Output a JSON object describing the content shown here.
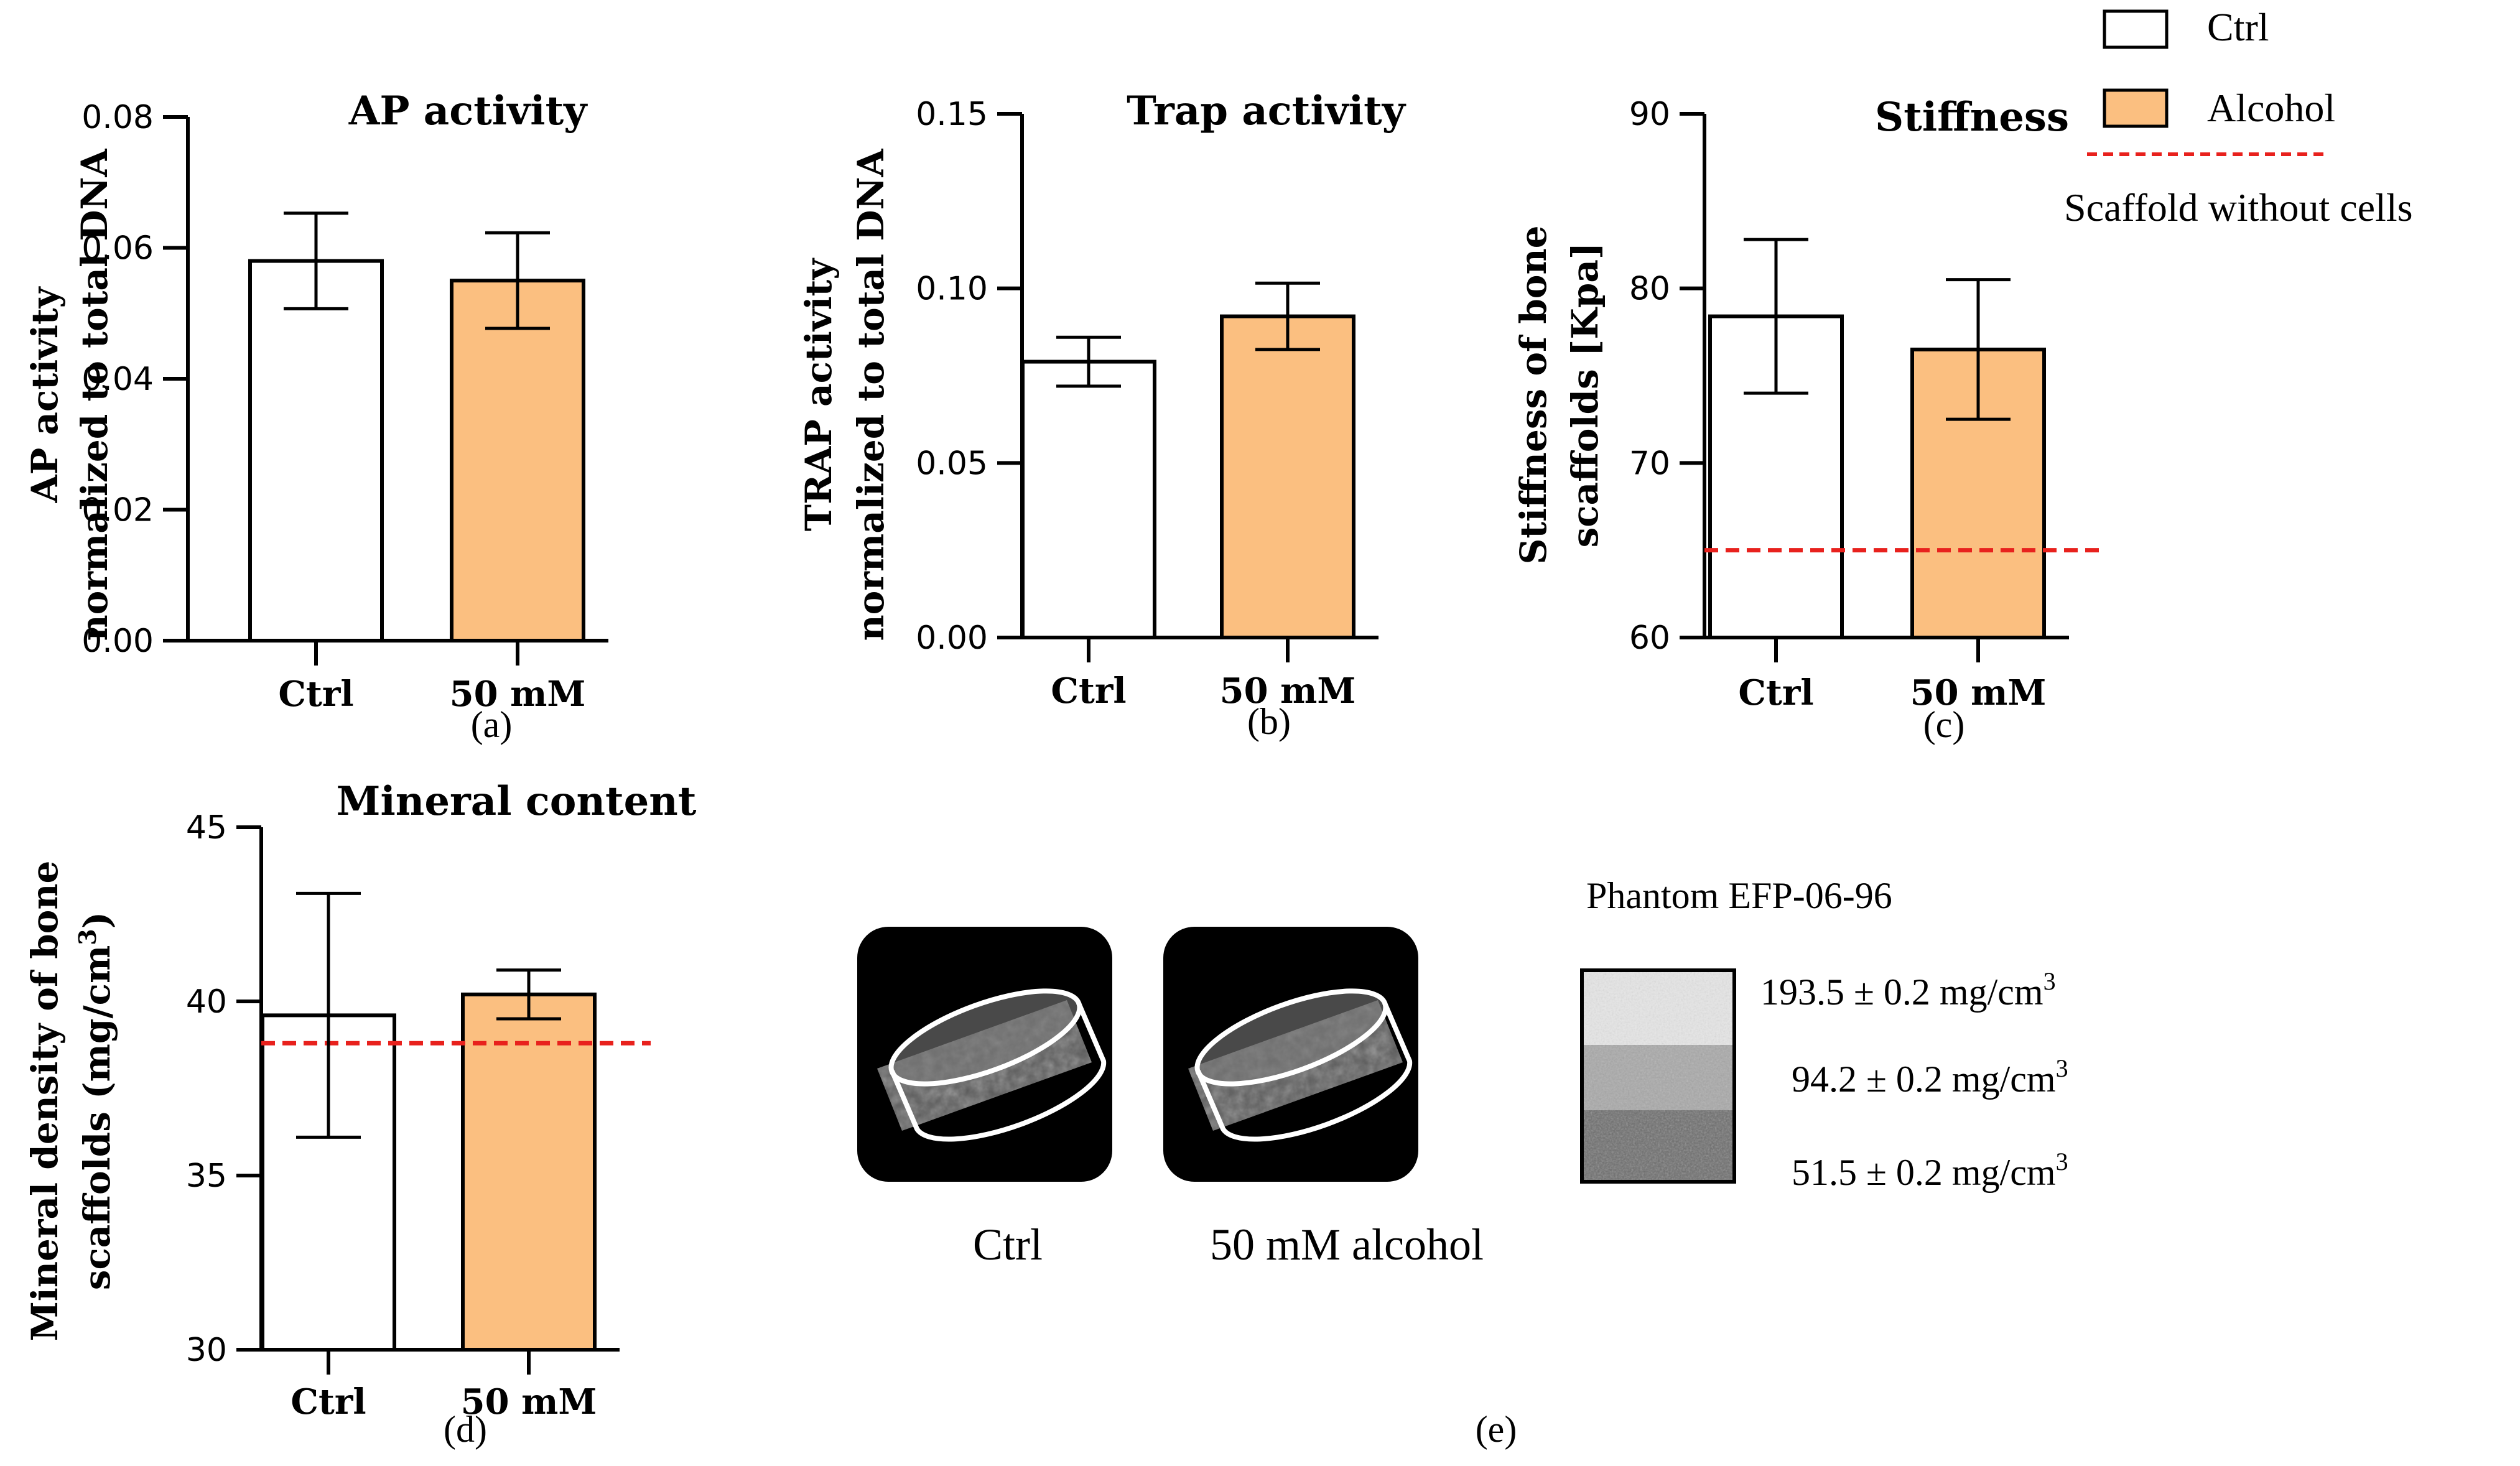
{
  "colors": {
    "ctrl_fill": "#ffffff",
    "alcohol_fill": "#fbbf80",
    "bar_stroke": "#000000",
    "scaffold_line": "#e8211d"
  },
  "legend": {
    "ctrl": "Ctrl",
    "alcohol": "Alcohol",
    "scaffold": "Scaffold without cells"
  },
  "panel_labels": {
    "a": "(a)",
    "b": "(b)",
    "c": "(c)",
    "d": "(d)",
    "e": "(e)"
  },
  "chart_data": [
    {
      "id": "a",
      "type": "bar",
      "title": "AP activity",
      "ylabel_line1": "AP activity",
      "ylabel_line2": "normalized to total DNA",
      "categories": [
        "Ctrl",
        "50 mM"
      ],
      "values": [
        0.058,
        0.055
      ],
      "errors": [
        0.0073,
        0.0073
      ],
      "ylim": [
        0,
        0.08
      ],
      "yticks": [
        "0.00",
        "0.02",
        "0.04",
        "0.06",
        "0.08"
      ]
    },
    {
      "id": "b",
      "type": "bar",
      "title": "Trap activity",
      "ylabel_line1": "TRAP activity",
      "ylabel_line2": "normalized to total DNA",
      "categories": [
        "Ctrl",
        "50 mM"
      ],
      "values": [
        0.079,
        0.092
      ],
      "errors": [
        0.007,
        0.0095
      ],
      "ylim": [
        0,
        0.15
      ],
      "yticks": [
        "0.00",
        "0.05",
        "0.10",
        "0.15"
      ]
    },
    {
      "id": "c",
      "type": "bar",
      "title": "Stiffness",
      "ylabel_line1": "Stiffness of bone",
      "ylabel_line2": "scaffolds [Kpa]",
      "categories": [
        "Ctrl",
        "50 mM"
      ],
      "values": [
        78.4,
        76.5
      ],
      "errors": [
        4.4,
        4.0
      ],
      "ylim": [
        60,
        90
      ],
      "yticks": [
        "60",
        "70",
        "80",
        "90"
      ],
      "reference_line": 65
    },
    {
      "id": "d",
      "type": "bar",
      "title": "Mineral content",
      "ylabel_line1": "Mineral density of bone",
      "ylabel_line2": "scaffolds (mg/cm",
      "ylabel_sup": "3",
      "ylabel_end": ")",
      "categories": [
        "Ctrl",
        "50 mM"
      ],
      "values": [
        39.6,
        40.2
      ],
      "errors": [
        3.5,
        0.7
      ],
      "ylim": [
        30,
        45
      ],
      "yticks": [
        "30",
        "35",
        "40",
        "45"
      ],
      "reference_line": 38.8
    }
  ],
  "panel_e": {
    "phantom_title": "Phantom EFP-06-96",
    "ctrl_label": "Ctrl",
    "alcohol_label": "50 mM alcohol",
    "densities": [
      {
        "value": "193.5 ± 0.2 mg/cm",
        "sup": "3"
      },
      {
        "value": "94.2 ± 0.2 mg/cm",
        "sup": "3"
      },
      {
        "value": "51.5 ± 0.2 mg/cm",
        "sup": "3"
      }
    ]
  }
}
